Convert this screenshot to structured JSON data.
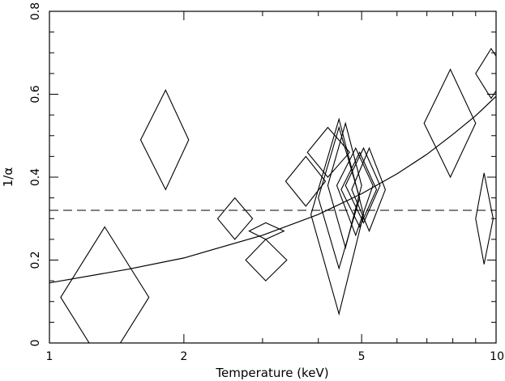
{
  "chart_data": {
    "type": "scatter",
    "title": "",
    "xlabel": "Temperature (keV)",
    "ylabel": "1/α",
    "xscale": "log",
    "xlim": [
      1,
      10
    ],
    "ylim": [
      0,
      0.8
    ],
    "x_ticks": [
      {
        "value": 1,
        "label": "1"
      },
      {
        "value": 2,
        "label": "2"
      },
      {
        "value": 5,
        "label": "5"
      },
      {
        "value": 10,
        "label": "10"
      }
    ],
    "y_ticks": [
      {
        "value": 0,
        "label": "0"
      },
      {
        "value": 0.2,
        "label": "0.2"
      },
      {
        "value": 0.4,
        "label": "0.4"
      },
      {
        "value": 0.6,
        "label": "0.6"
      },
      {
        "value": 0.8,
        "label": "0.8"
      }
    ],
    "grid": false,
    "marker": "diamond error box",
    "points": [
      {
        "x": 1.33,
        "y": 0.11,
        "xlo": 1.06,
        "xhi": 1.67,
        "ylo": -0.06,
        "yhi": 0.28
      },
      {
        "x": 1.82,
        "y": 0.49,
        "xlo": 1.6,
        "xhi": 2.05,
        "ylo": 0.37,
        "yhi": 0.61
      },
      {
        "x": 2.6,
        "y": 0.3,
        "xlo": 2.38,
        "xhi": 2.85,
        "ylo": 0.25,
        "yhi": 0.35
      },
      {
        "x": 3.05,
        "y": 0.27,
        "xlo": 2.8,
        "xhi": 3.35,
        "ylo": 0.25,
        "yhi": 0.29
      },
      {
        "x": 3.05,
        "y": 0.2,
        "xlo": 2.75,
        "xhi": 3.4,
        "ylo": 0.15,
        "yhi": 0.25
      },
      {
        "x": 3.75,
        "y": 0.39,
        "xlo": 3.38,
        "xhi": 4.15,
        "ylo": 0.33,
        "yhi": 0.45
      },
      {
        "x": 4.2,
        "y": 0.46,
        "xlo": 3.78,
        "xhi": 4.7,
        "ylo": 0.4,
        "yhi": 0.52
      },
      {
        "x": 4.45,
        "y": 0.31,
        "xlo": 3.85,
        "xhi": 5.05,
        "ylo": 0.07,
        "yhi": 0.54
      },
      {
        "x": 4.45,
        "y": 0.35,
        "xlo": 4.0,
        "xhi": 4.95,
        "ylo": 0.18,
        "yhi": 0.52
      },
      {
        "x": 4.6,
        "y": 0.38,
        "xlo": 4.2,
        "xhi": 5.0,
        "ylo": 0.23,
        "yhi": 0.53
      },
      {
        "x": 4.85,
        "y": 0.38,
        "xlo": 4.4,
        "xhi": 5.3,
        "ylo": 0.26,
        "yhi": 0.47
      },
      {
        "x": 4.95,
        "y": 0.37,
        "xlo": 4.5,
        "xhi": 5.4,
        "ylo": 0.28,
        "yhi": 0.46
      },
      {
        "x": 5.05,
        "y": 0.38,
        "xlo": 4.6,
        "xhi": 5.5,
        "ylo": 0.29,
        "yhi": 0.47
      },
      {
        "x": 5.2,
        "y": 0.37,
        "xlo": 4.75,
        "xhi": 5.65,
        "ylo": 0.27,
        "yhi": 0.47
      },
      {
        "x": 7.9,
        "y": 0.53,
        "xlo": 6.9,
        "xhi": 9.0,
        "ylo": 0.4,
        "yhi": 0.66
      },
      {
        "x": 9.4,
        "y": 0.3,
        "xlo": 9.0,
        "xhi": 9.85,
        "ylo": 0.19,
        "yhi": 0.41
      },
      {
        "x": 9.75,
        "y": 0.65,
        "xlo": 9.0,
        "xhi": 10.6,
        "ylo": 0.59,
        "yhi": 0.71
      }
    ],
    "lines": [
      {
        "style": "dashed",
        "type": "constant",
        "y": 0.32
      },
      {
        "style": "solid",
        "type": "curve",
        "x": [
          1,
          1.5,
          2,
          3,
          4,
          5,
          6,
          7,
          8,
          9,
          10
        ],
        "y": [
          0.145,
          0.178,
          0.205,
          0.26,
          0.31,
          0.36,
          0.408,
          0.455,
          0.503,
          0.548,
          0.595
        ]
      }
    ]
  }
}
